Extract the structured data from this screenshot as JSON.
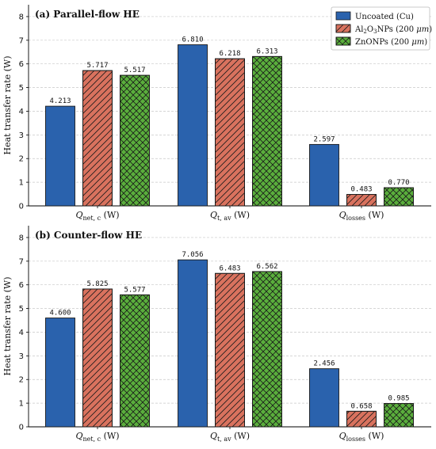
{
  "colors": {
    "uncoated": "#2a62ad",
    "al2o3": "#d9725e",
    "zno": "#5aae3c",
    "grid": "#c8c8c8"
  },
  "legend": {
    "placement": "top-right",
    "entries": [
      "Uncoated (Cu)",
      "Al2O3NPs (200 μm)",
      "ZnONPs (200 μm)"
    ]
  },
  "chart_data": [
    {
      "type": "bar",
      "title": "(a)  Parallel-flow HE",
      "ylabel": "Heat transfer rate (W)",
      "ylim": [
        0,
        8.5
      ],
      "yticks": [
        0,
        1,
        2,
        3,
        4,
        5,
        6,
        7,
        8
      ],
      "grid": true,
      "categories": [
        "Q_net,c (W)",
        "Q_t,av (W)",
        "Q_losses (W)"
      ],
      "series": [
        {
          "name": "Uncoated (Cu)",
          "values": [
            4.213,
            6.81,
            2.597
          ],
          "labels": [
            "4.213",
            "6.810",
            "2.597"
          ]
        },
        {
          "name": "Al2O3NPs (200 μm)",
          "values": [
            5.717,
            6.218,
            0.483
          ],
          "labels": [
            "5.717",
            "6.218",
            "0.483"
          ]
        },
        {
          "name": "ZnONPs (200 μm)",
          "values": [
            5.517,
            6.313,
            0.77
          ],
          "labels": [
            "5.517",
            "6.313",
            "0.770"
          ]
        }
      ]
    },
    {
      "type": "bar",
      "title": "(b)  Counter-flow HE",
      "ylabel": "Heat transfer rate (W)",
      "ylim": [
        0,
        8.5
      ],
      "yticks": [
        0,
        1,
        2,
        3,
        4,
        5,
        6,
        7,
        8
      ],
      "grid": true,
      "categories": [
        "Q_net,c (W)",
        "Q_t,av (W)",
        "Q_losses (W)"
      ],
      "series": [
        {
          "name": "Uncoated (Cu)",
          "values": [
            4.6,
            7.056,
            2.456
          ],
          "labels": [
            "4.600",
            "7.056",
            "2.456"
          ]
        },
        {
          "name": "Al2O3NPs (200 μm)",
          "values": [
            5.825,
            6.483,
            0.658
          ],
          "labels": [
            "5.825",
            "6.483",
            "0.658"
          ]
        },
        {
          "name": "ZnONPs (200 μm)",
          "values": [
            5.577,
            6.562,
            0.985
          ],
          "labels": [
            "5.577",
            "6.562",
            "0.985"
          ]
        }
      ]
    }
  ]
}
